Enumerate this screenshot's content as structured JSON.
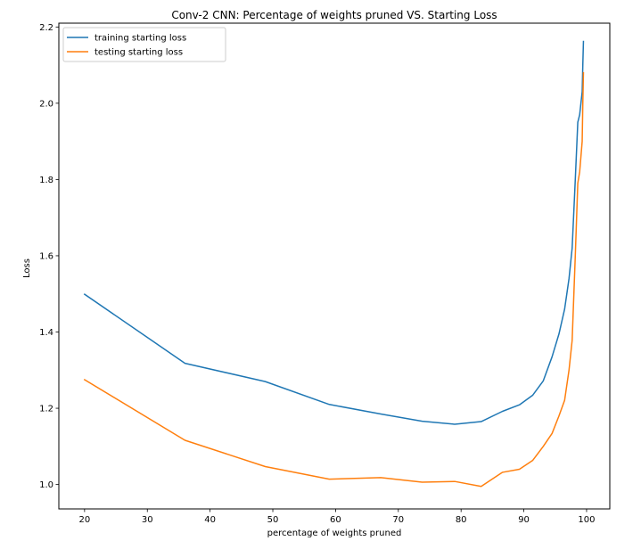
{
  "chart_data": {
    "type": "line",
    "title": "Conv-2 CNN: Percentage of weights pruned VS. Starting Loss",
    "xlabel": "percentage of weights pruned",
    "ylabel": "Loss",
    "xlim": [
      15.9,
      103.7
    ],
    "ylim": [
      0.936,
      2.21
    ],
    "xticks": [
      20,
      30,
      40,
      50,
      60,
      70,
      80,
      90,
      100
    ],
    "yticks": [
      1.0,
      1.2,
      1.4,
      1.6,
      1.8,
      2.0,
      2.2
    ],
    "xtick_labels": [
      "20",
      "30",
      "40",
      "50",
      "60",
      "70",
      "80",
      "90",
      "100"
    ],
    "ytick_labels": [
      "1.0",
      "1.2",
      "1.4",
      "1.6",
      "1.8",
      "2.0",
      "2.2"
    ],
    "grid": false,
    "legend_position": "top-left",
    "series": [
      {
        "name": "training starting loss",
        "color": "#1f77b4",
        "x": [
          20,
          36,
          48.8,
          59,
          67.2,
          73.8,
          79,
          83.2,
          86.6,
          89.3,
          91.4,
          93.1,
          94.5,
          95.6,
          96.5,
          97.2,
          97.7,
          98.2,
          98.6,
          98.9,
          99.1,
          99.3,
          99.4,
          99.5
        ],
        "y": [
          1.499,
          1.318,
          1.27,
          1.21,
          1.185,
          1.166,
          1.158,
          1.165,
          1.192,
          1.209,
          1.234,
          1.272,
          1.335,
          1.395,
          1.46,
          1.54,
          1.62,
          1.8,
          1.95,
          1.97,
          2.0,
          2.03,
          2.1,
          2.162
        ]
      },
      {
        "name": "testing starting loss",
        "color": "#ff7f0e",
        "x": [
          20,
          36,
          48.8,
          59,
          67.2,
          73.8,
          79,
          83.2,
          86.6,
          89.3,
          91.4,
          93.1,
          94.5,
          95.6,
          96.5,
          97.2,
          97.7,
          98.2,
          98.6,
          98.9,
          99.1,
          99.3,
          99.4,
          99.5
        ],
        "y": [
          1.275,
          1.116,
          1.047,
          1.014,
          1.018,
          1.006,
          1.008,
          0.995,
          1.032,
          1.04,
          1.063,
          1.1,
          1.134,
          1.18,
          1.221,
          1.3,
          1.378,
          1.6,
          1.79,
          1.82,
          1.86,
          1.9,
          2.0,
          2.08
        ]
      }
    ]
  }
}
